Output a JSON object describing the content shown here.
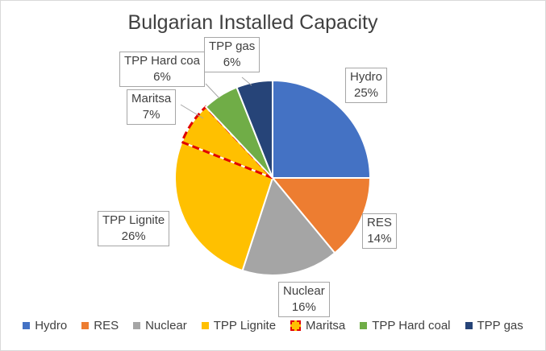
{
  "chart_data": {
    "type": "pie",
    "title": "Bulgarian Installed Capacity",
    "slices": [
      {
        "name": "Hydro",
        "value": 25,
        "color": "#4472c4",
        "label": "Hydro",
        "pct_label": "25%"
      },
      {
        "name": "RES",
        "value": 14,
        "color": "#ed7d31",
        "label": "RES",
        "pct_label": "14%"
      },
      {
        "name": "Nuclear",
        "value": 16,
        "color": "#a5a5a5",
        "label": "Nuclear",
        "pct_label": "16%"
      },
      {
        "name": "TPP Lignite",
        "value": 26,
        "color": "#ffc000",
        "label": "TPP Lignite",
        "pct_label": "26%"
      },
      {
        "name": "Maritsa",
        "value": 7,
        "color": "#ffc000",
        "label": "Maritsa",
        "pct_label": "7%",
        "outline": "#e00000"
      },
      {
        "name": "TPP Hard coal",
        "value": 6,
        "color": "#70ad47",
        "label": "TPP Hard coa",
        "pct_label": "6%"
      },
      {
        "name": "TPP gas",
        "value": 6,
        "color": "#264478",
        "label": "TPP gas",
        "pct_label": "6%"
      }
    ],
    "legend_position": "bottom"
  }
}
